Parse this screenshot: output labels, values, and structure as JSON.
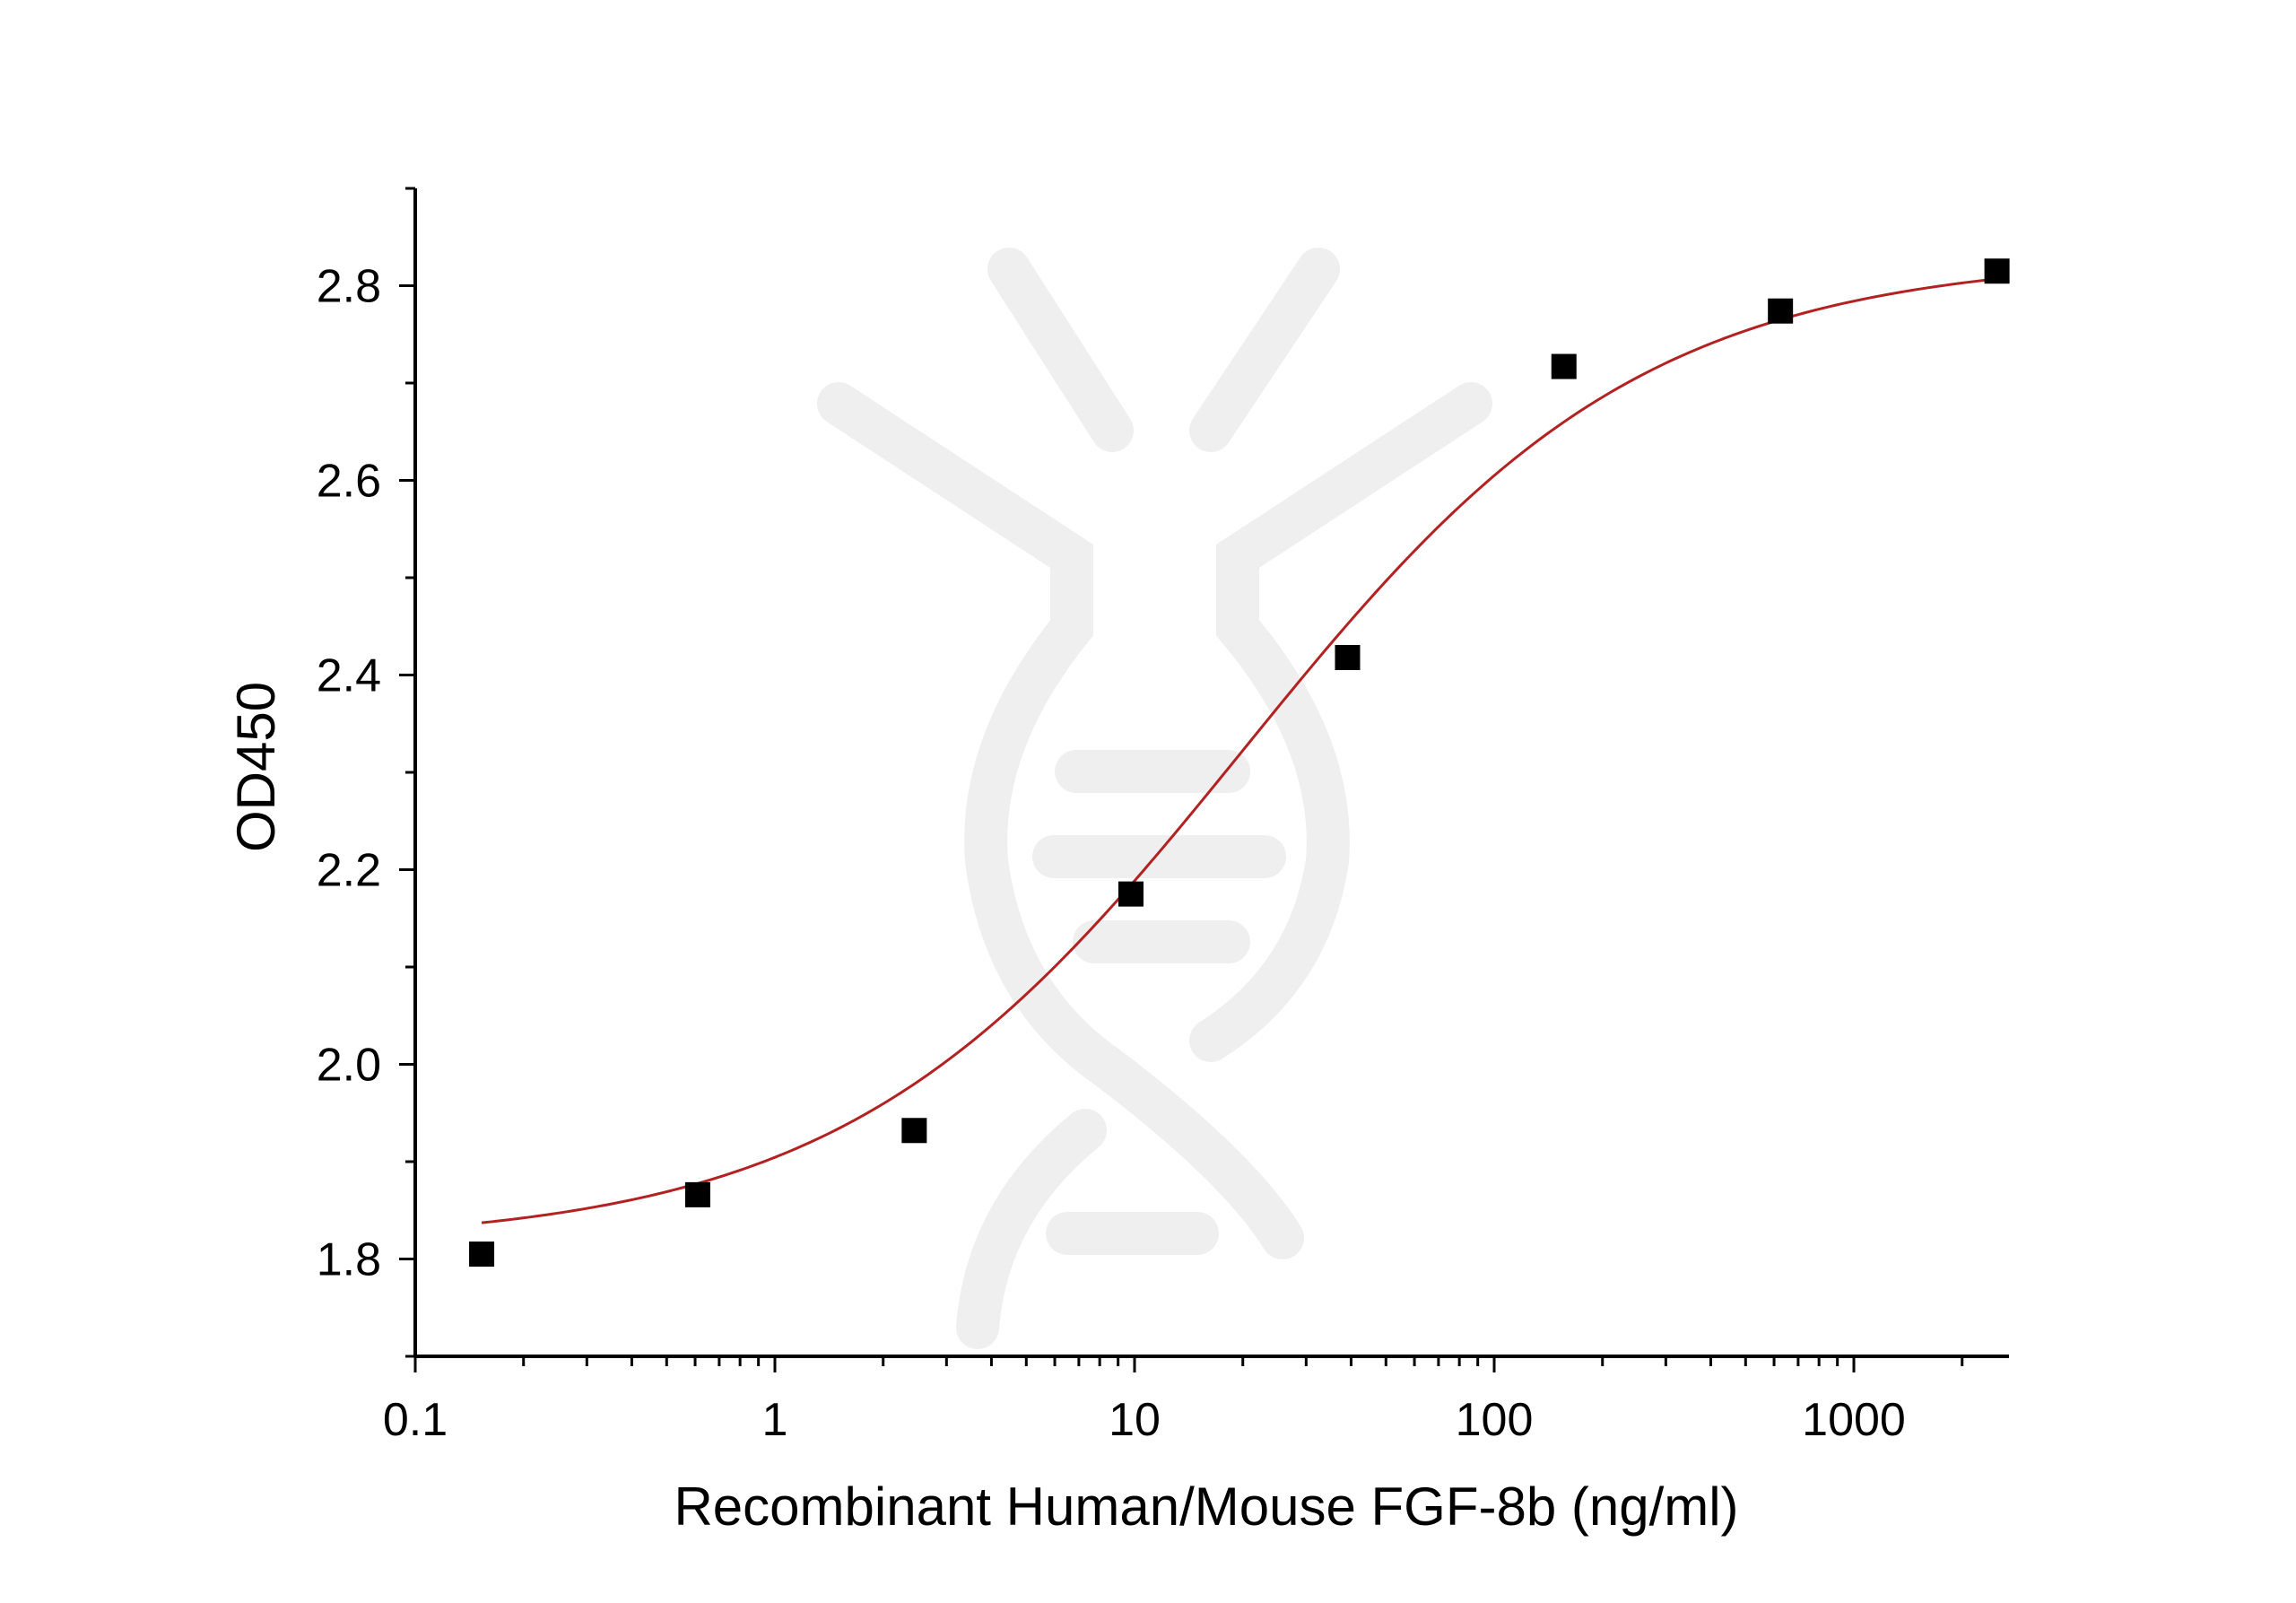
{
  "chart_data": {
    "type": "scatter",
    "title": "",
    "xlabel": "Recombinant Human/Mouse FGF-8b (ng/ml)",
    "ylabel": "OD450",
    "xscale": "log",
    "xlim": [
      0.1,
      2700
    ],
    "ylim": [
      1.7,
      2.9
    ],
    "x_ticks": [
      0.1,
      1,
      10,
      100,
      1000
    ],
    "x_tick_labels": [
      "0.1",
      "1",
      "10",
      "100",
      "1000"
    ],
    "y_ticks": [
      1.8,
      2.0,
      2.2,
      2.4,
      2.6,
      2.8
    ],
    "y_tick_labels": [
      "1.8",
      "2.0",
      "2.2",
      "2.4",
      "2.6",
      "2.8"
    ],
    "grid": false,
    "legend": "none",
    "series": [
      {
        "marker": "square",
        "color": "#000000",
        "x": [
          0.153,
          0.61,
          2.44,
          9.77,
          39.1,
          156.25,
          625,
          2500
        ],
        "y": [
          1.805,
          1.866,
          1.932,
          2.175,
          2.418,
          2.717,
          2.774,
          2.815
        ]
      }
    ],
    "fit": {
      "type": "4PL",
      "color": "#b22222",
      "bottom": 1.815,
      "top": 2.83,
      "ec50": 20,
      "hill": 0.78
    }
  }
}
